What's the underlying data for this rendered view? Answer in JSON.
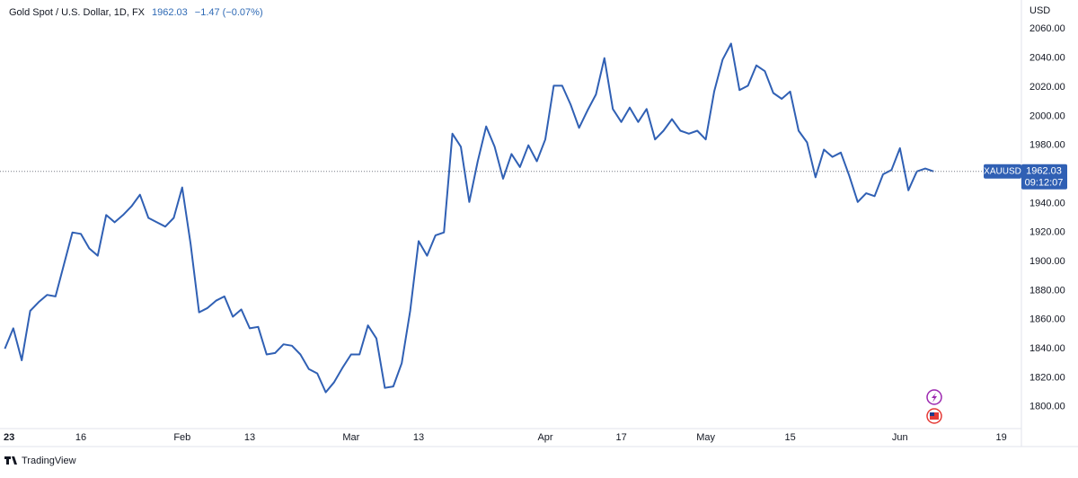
{
  "chart_data": {
    "type": "line",
    "title": "Gold Spot / U.S. Dollar, 1D, FX",
    "last_price": 1962.03,
    "change_label": "−1.47 (−0.07%)",
    "symbol": "XAUUSD",
    "countdown": "09:12:07",
    "y_label": "USD",
    "brand": "TradingView",
    "color": "#3060b4",
    "ylim": [
      1785,
      2080
    ],
    "yticks": [
      {
        "value": 1800,
        "label": "1800.00"
      },
      {
        "value": 1820,
        "label": "1820.00"
      },
      {
        "value": 1840,
        "label": "1840.00"
      },
      {
        "value": 1860,
        "label": "1860.00"
      },
      {
        "value": 1880,
        "label": "1880.00"
      },
      {
        "value": 1900,
        "label": "1900.00"
      },
      {
        "value": 1920,
        "label": "1920.00"
      },
      {
        "value": 1940,
        "label": "1940.00"
      },
      {
        "value": 1960,
        "label": "1960.00"
      },
      {
        "value": 1980,
        "label": "1980.00"
      },
      {
        "value": 2000,
        "label": "2000.00"
      },
      {
        "value": 2020,
        "label": "2020.00"
      },
      {
        "value": 2040,
        "label": "2040.00"
      },
      {
        "value": 2060,
        "label": "2060.00"
      }
    ],
    "grid": false,
    "categories": [
      "23",
      null,
      null,
      null,
      null,
      null,
      null,
      null,
      null,
      "16",
      null,
      null,
      null,
      null,
      null,
      null,
      null,
      null,
      null,
      null,
      null,
      "Feb",
      null,
      null,
      null,
      null,
      null,
      null,
      null,
      "13",
      null,
      null,
      null,
      null,
      null,
      null,
      null,
      null,
      null,
      null,
      null,
      "Mar",
      null,
      null,
      null,
      null,
      null,
      null,
      null,
      "13",
      null,
      null,
      null,
      null,
      null,
      null,
      null,
      null,
      null,
      null,
      null,
      null,
      null,
      null,
      "Apr",
      null,
      null,
      null,
      null,
      null,
      null,
      null,
      null,
      "17",
      null,
      null,
      null,
      null,
      null,
      null,
      null,
      null,
      null,
      "May",
      null,
      null,
      null,
      null,
      null,
      null,
      null,
      null,
      null,
      "15",
      null,
      null,
      null,
      null,
      null,
      null,
      null,
      null,
      null,
      null,
      null,
      null,
      "Jun",
      null,
      null,
      null,
      null,
      null,
      null,
      null,
      null,
      null,
      null,
      null,
      "19",
      null,
      null
    ],
    "values": [
      1840,
      1854,
      1832,
      1866,
      1872,
      1877,
      1876,
      1898,
      1920,
      1919,
      1909,
      1904,
      1932,
      1927,
      1932,
      1938,
      1946,
      1930,
      1927,
      1924,
      1930,
      1951,
      1912,
      1865,
      1868,
      1873,
      1876,
      1862,
      1867,
      1854,
      1855,
      1836,
      1837,
      1843,
      1842,
      1836,
      1826,
      1823,
      1810,
      1817,
      1827,
      1836,
      1836,
      1856,
      1847,
      1813,
      1814,
      1830,
      1866,
      1914,
      1904,
      1918,
      1920,
      1988,
      1979,
      1941,
      1969,
      1993,
      1979,
      1957,
      1974,
      1965,
      1980,
      1969,
      1984,
      2021,
      2021,
      2008,
      1992,
      2004,
      2015,
      2040,
      2005,
      1996,
      2006,
      1996,
      2005,
      1984,
      1990,
      1998,
      1990,
      1988,
      1990,
      1984,
      2017,
      2039,
      2050,
      2018,
      2021,
      2035,
      2031,
      2016,
      2012,
      2017,
      1990,
      1982,
      1958,
      1977,
      1972,
      1975,
      1959,
      1941,
      1947,
      1945,
      1960,
      1963,
      1978,
      1949,
      1962,
      1964,
      1962.03,
      null,
      null,
      null,
      null,
      null,
      null,
      null,
      null,
      null,
      null
    ]
  }
}
